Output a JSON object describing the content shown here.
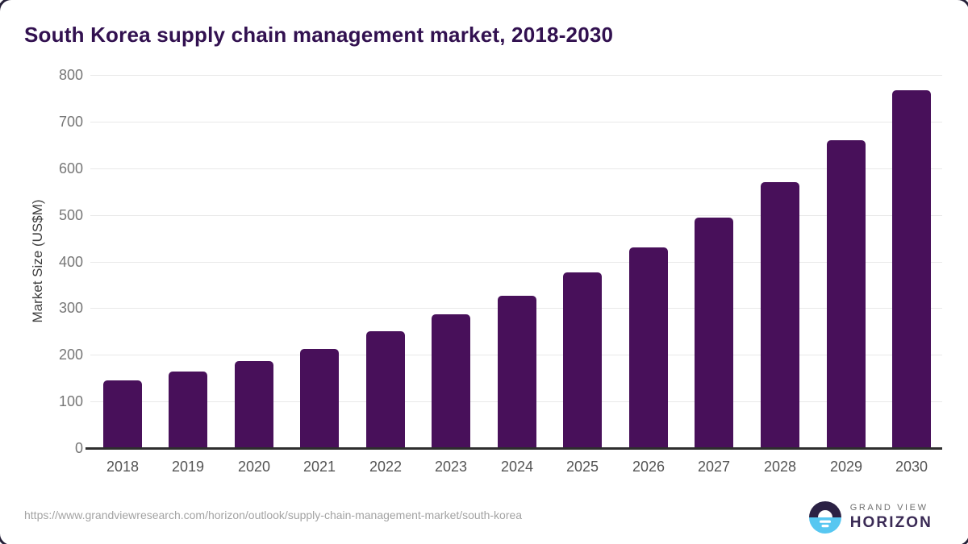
{
  "page": {
    "footer": {
      "source_url": "https://www.grandviewresearch.com/horizon/outlook/supply-chain-management-market/south-korea"
    },
    "brand": {
      "name_line1": "GRAND VIEW",
      "name_line2": "HORIZON",
      "logo_icon": "sunrise-horizon-icon",
      "logo_color_top": "#2b2144",
      "logo_color_bottom": "#57c7f1"
    }
  },
  "chart_data": {
    "type": "bar",
    "title": "South Korea supply chain management market, 2018-2030",
    "categories": [
      "2018",
      "2019",
      "2020",
      "2021",
      "2022",
      "2023",
      "2024",
      "2025",
      "2026",
      "2027",
      "2028",
      "2029",
      "2030"
    ],
    "values": [
      146,
      164,
      186,
      212,
      251,
      287,
      327,
      376,
      430,
      495,
      570,
      660,
      768
    ],
    "xlabel": "",
    "ylabel": "Market Size (US$M)",
    "units": "US$M",
    "ylim": [
      0,
      800
    ],
    "ytick_step": 100,
    "grid": true,
    "legend": "none",
    "bar_color": "#48105a"
  }
}
